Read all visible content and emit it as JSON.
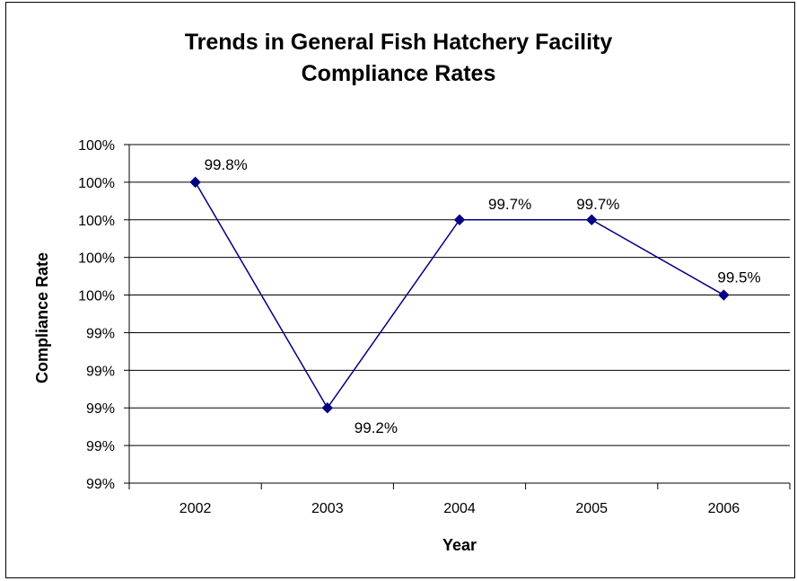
{
  "chart_data": {
    "type": "line",
    "title_lines": [
      "Trends in General Fish Hatchery Facility",
      "Compliance Rates"
    ],
    "xlabel": "Year",
    "ylabel": "Compliance Rate",
    "categories": [
      "2002",
      "2003",
      "2004",
      "2005",
      "2006"
    ],
    "series": [
      {
        "values": [
          99.8,
          99.2,
          99.7,
          99.7,
          99.5
        ],
        "data_labels": [
          "99.8%",
          "99.2%",
          "99.7%",
          "99.7%",
          "99.5%"
        ],
        "color": "#000080"
      }
    ],
    "ylim": [
      99.0,
      99.9
    ],
    "ytick_values": [
      99.0,
      99.1,
      99.2,
      99.3,
      99.4,
      99.5,
      99.6,
      99.7,
      99.8,
      99.9
    ],
    "ytick_labels": [
      "99%",
      "99%",
      "99%",
      "99%",
      "99%",
      "100%",
      "100%",
      "100%",
      "100%",
      "100%"
    ],
    "grid": true,
    "legend": "none"
  }
}
